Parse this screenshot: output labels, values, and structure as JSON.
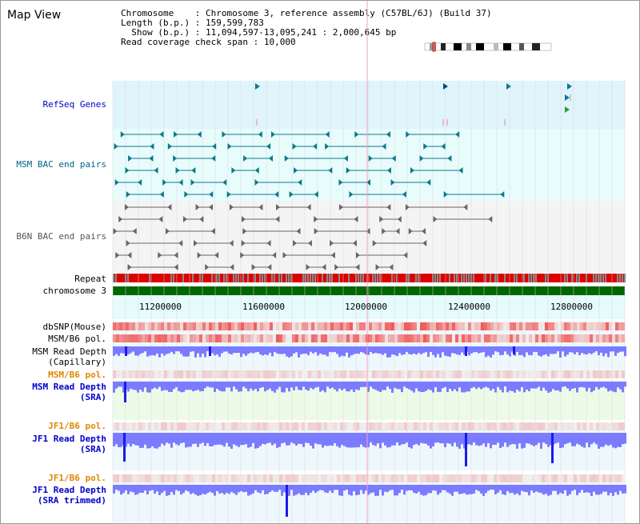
{
  "header": {
    "title": "Map View",
    "chromosome_key": "Chromosome",
    "chromosome_value": "Chromosome 3, reference assembly (C57BL/6J) (Build 37)",
    "length_key": "Length (b.p.)",
    "length_value": "159,599,783",
    "show_key": "Show (b.p.)",
    "show_value": "11,094,597-13,095,241 : 2,000,645 bp",
    "span_key": "Read coverage check span",
    "span_value": "10,000"
  },
  "tracks": {
    "refseq": "RefSeq Genes",
    "msm_bac": "MSM BAC end pairs",
    "b6n_bac": "B6N BAC end pairs",
    "repeat": "Repeat",
    "chromosome": "chromosome 3",
    "dbsnp": "dbSNP(Mouse)",
    "msm_b6_pol": "MSM/B6 pol.",
    "msm_read_depth_cap_1": "MSM Read Depth",
    "msm_read_depth_cap_2": "(Capillary)",
    "msm_b6_pol_2": "MSM/B6 pol.",
    "msm_read_depth_sra_1": "MSM Read Depth",
    "msm_read_depth_sra_2": "(SRA)",
    "jf1_b6_pol": "JF1/B6 pol.",
    "jf1_read_depth_sra_1": "JF1 Read Depth",
    "jf1_read_depth_sra_2": "(SRA)",
    "jf1_b6_pol_2": "JF1/B6 pol.",
    "jf1_read_depth_trim_1": "JF1 Read Depth",
    "jf1_read_depth_trim_2": "(SRA trimmed)"
  },
  "scale": {
    "ticks": [
      "11200000",
      "11600000",
      "12000000",
      "12400000",
      "12800000"
    ]
  },
  "colors": {
    "refseq_label": "#0000cc",
    "msm_bac_label": "#006688",
    "b6n_bac_label": "#555555",
    "pol_label_orange": "#dd8800",
    "depth_label_blue": "#0000cc",
    "chromosome_bar": "#006600"
  }
}
